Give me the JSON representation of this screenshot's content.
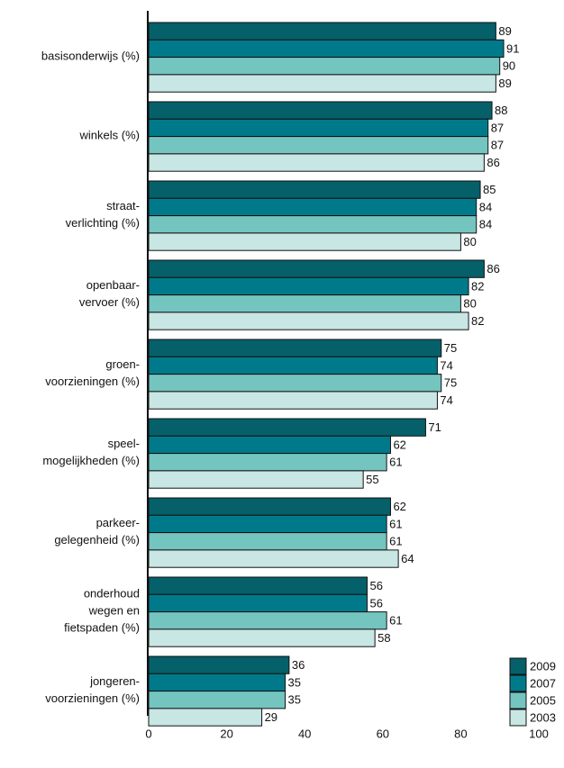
{
  "chart_data": {
    "type": "hbar",
    "categories": [
      [
        "basisonderwijs (%)"
      ],
      [
        "winkels (%)"
      ],
      [
        "straat-",
        "verlichting (%)"
      ],
      [
        "openbaar-",
        "vervoer (%)"
      ],
      [
        "groen-",
        "voorzieningen (%)"
      ],
      [
        "speel-",
        "mogelijkheden (%)"
      ],
      [
        "parkeer-",
        "gelegenheid (%)"
      ],
      [
        "onderhoud",
        "wegen en",
        "fietspaden (%)"
      ],
      [
        "jongeren-",
        "voorzieningen (%)"
      ]
    ],
    "series": [
      {
        "name": "2009",
        "color": "#05606a",
        "values": [
          89,
          88,
          85,
          86,
          75,
          71,
          62,
          56,
          36
        ]
      },
      {
        "name": "2007",
        "color": "#007a8a",
        "values": [
          91,
          87,
          84,
          82,
          74,
          62,
          61,
          56,
          35
        ]
      },
      {
        "name": "2005",
        "color": "#74c4bf",
        "values": [
          90,
          87,
          84,
          80,
          75,
          61,
          61,
          61,
          35
        ]
      },
      {
        "name": "2003",
        "color": "#c8e6e3",
        "values": [
          89,
          86,
          80,
          82,
          74,
          55,
          64,
          58,
          29
        ]
      }
    ],
    "xlim": [
      0,
      100
    ],
    "xticks": [
      0,
      20,
      40,
      60,
      80,
      100
    ],
    "grid": false,
    "legend": "lower right"
  }
}
